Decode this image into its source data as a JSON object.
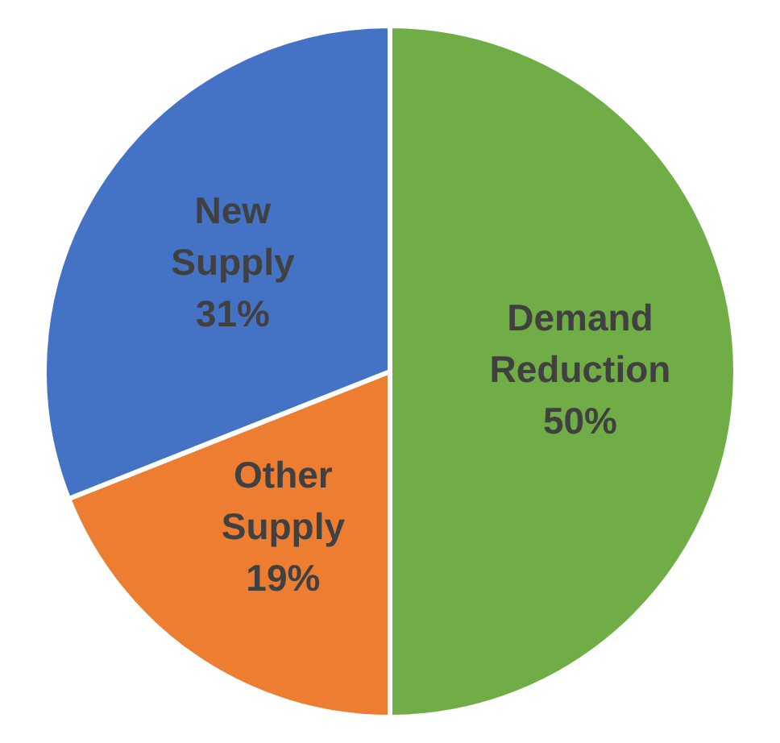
{
  "chart_data": {
    "type": "pie",
    "categories": [
      "Demand Reduction",
      "Other Supply",
      "New Supply"
    ],
    "values": [
      50,
      19,
      31
    ],
    "colors": [
      "#70ad47",
      "#ed7d31",
      "#4472c4"
    ],
    "value_labels": [
      "50%",
      "19%",
      "31%"
    ],
    "legend": false
  }
}
